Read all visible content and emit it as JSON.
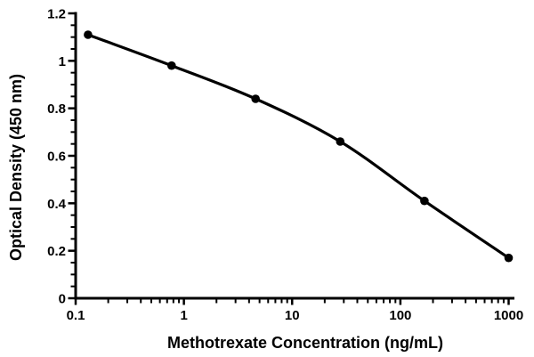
{
  "figure": {
    "background": "#ffffff",
    "axis_color": "#000000"
  },
  "chart_data": {
    "type": "line",
    "title": "",
    "xlabel": "Methotrexate Concentration (ng/mL)",
    "ylabel": "Optical Density (450 nm)",
    "x_scale": "log",
    "y_scale": "linear",
    "xlim": [
      0.1,
      1000
    ],
    "ylim": [
      0,
      1.2
    ],
    "x_ticks": [
      0.1,
      1,
      10,
      100,
      1000
    ],
    "x_tick_labels": [
      "0.1",
      "1",
      "10",
      "100",
      "1000"
    ],
    "y_ticks": [
      0,
      0.2,
      0.4,
      0.6,
      0.8,
      1,
      1.2
    ],
    "y_tick_labels": [
      "0",
      "0.2",
      "0.4",
      "0.6",
      "0.8",
      "1",
      "1.2"
    ],
    "y_minor_tick_step": 0.05,
    "x_minor_ticks": "log-decades",
    "grid": false,
    "legend": false,
    "series": [
      {
        "x": [
          0.13,
          0.77,
          4.6,
          27.8,
          166.7,
          1000
        ],
        "y": [
          1.11,
          0.98,
          0.84,
          0.66,
          0.41,
          0.17
        ],
        "color": "#000000",
        "marker": "circle",
        "line_style": "smooth"
      }
    ]
  }
}
